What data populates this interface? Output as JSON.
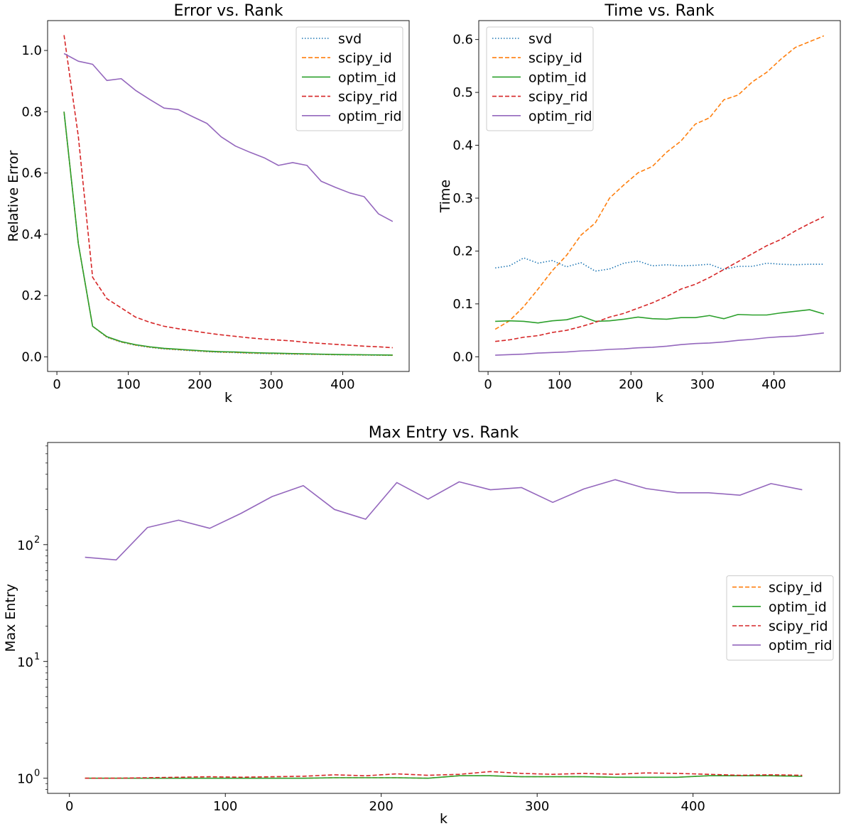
{
  "chart_data": [
    {
      "id": "error",
      "type": "line",
      "title": "Error vs. Rank",
      "xlabel": "k",
      "ylabel": "Relative Error",
      "xlim": [
        -13,
        493
      ],
      "ylim": [
        -0.0475,
        1.0975
      ],
      "xticks": [
        0,
        100,
        200,
        300,
        400
      ],
      "xtick_labels": [
        "0",
        "100",
        "200",
        "300",
        "400"
      ],
      "yticks": [
        0.0,
        0.2,
        0.4,
        0.6,
        0.8,
        1.0
      ],
      "ytick_labels": [
        "0.0",
        "0.2",
        "0.4",
        "0.6",
        "0.8",
        "1.0"
      ],
      "yscale": "linear",
      "grid": false,
      "legend": "top-right",
      "x": [
        10,
        30,
        50,
        70,
        90,
        110,
        130,
        150,
        170,
        190,
        210,
        230,
        250,
        270,
        290,
        310,
        330,
        350,
        370,
        390,
        410,
        430,
        450,
        470
      ],
      "series": [
        {
          "name": "svd",
          "color": "#1f77b4",
          "style": "dotted",
          "values": [
            0.8,
            0.37,
            0.1,
            0.064,
            0.048,
            0.038,
            0.031,
            0.026,
            0.023,
            0.02,
            0.017,
            0.015,
            0.014,
            0.012,
            0.011,
            0.01,
            0.009,
            0.0085,
            0.008,
            0.007,
            0.0065,
            0.006,
            0.0055,
            0.005
          ]
        },
        {
          "name": "scipy_id",
          "color": "#ff7f0e",
          "style": "dashed",
          "values": [
            0.8,
            0.37,
            0.1,
            0.065,
            0.049,
            0.039,
            0.032,
            0.027,
            0.024,
            0.021,
            0.018,
            0.016,
            0.015,
            0.013,
            0.012,
            0.011,
            0.01,
            0.009,
            0.0085,
            0.0075,
            0.007,
            0.0065,
            0.006,
            0.0055
          ]
        },
        {
          "name": "optim_id",
          "color": "#2ca02c",
          "style": "solid",
          "values": [
            0.8,
            0.37,
            0.1,
            0.066,
            0.05,
            0.04,
            0.033,
            0.028,
            0.025,
            0.022,
            0.019,
            0.017,
            0.016,
            0.014,
            0.013,
            0.012,
            0.011,
            0.01,
            0.009,
            0.008,
            0.0075,
            0.007,
            0.0065,
            0.006
          ]
        },
        {
          "name": "scipy_rid",
          "color": "#d62728",
          "style": "dashed",
          "values": [
            1.05,
            0.72,
            0.26,
            0.19,
            0.16,
            0.13,
            0.113,
            0.1,
            0.092,
            0.085,
            0.078,
            0.072,
            0.067,
            0.062,
            0.058,
            0.055,
            0.052,
            0.047,
            0.044,
            0.041,
            0.038,
            0.035,
            0.033,
            0.03
          ]
        },
        {
          "name": "optim_rid",
          "color": "#9467bd",
          "style": "solid",
          "values": [
            0.99,
            0.965,
            0.955,
            0.902,
            0.908,
            0.87,
            0.84,
            0.812,
            0.807,
            0.784,
            0.762,
            0.718,
            0.688,
            0.668,
            0.65,
            0.625,
            0.634,
            0.625,
            0.573,
            0.553,
            0.535,
            0.523,
            0.467,
            0.442
          ]
        }
      ]
    },
    {
      "id": "time",
      "type": "line",
      "title": "Time vs. Rank",
      "xlabel": "k",
      "ylabel": "Time",
      "xlim": [
        -13,
        493
      ],
      "ylim": [
        -0.0278,
        0.6358
      ],
      "xticks": [
        0,
        100,
        200,
        300,
        400
      ],
      "xtick_labels": [
        "0",
        "100",
        "200",
        "300",
        "400"
      ],
      "yticks": [
        0.0,
        0.1,
        0.2,
        0.3,
        0.4,
        0.5,
        0.6
      ],
      "ytick_labels": [
        "0.0",
        "0.1",
        "0.2",
        "0.3",
        "0.4",
        "0.5",
        "0.6"
      ],
      "yscale": "linear",
      "grid": false,
      "legend": "top-left",
      "x": [
        10,
        30,
        50,
        70,
        90,
        110,
        130,
        150,
        170,
        190,
        210,
        230,
        250,
        270,
        290,
        310,
        330,
        350,
        370,
        390,
        410,
        430,
        450,
        470
      ],
      "series": [
        {
          "name": "svd",
          "color": "#1f77b4",
          "style": "dotted",
          "values": [
            0.168,
            0.172,
            0.187,
            0.177,
            0.182,
            0.17,
            0.178,
            0.162,
            0.166,
            0.177,
            0.181,
            0.172,
            0.174,
            0.172,
            0.173,
            0.175,
            0.165,
            0.171,
            0.171,
            0.177,
            0.175,
            0.174,
            0.175,
            0.175
          ]
        },
        {
          "name": "scipy_id",
          "color": "#ff7f0e",
          "style": "dashed",
          "values": [
            0.052,
            0.068,
            0.095,
            0.128,
            0.163,
            0.192,
            0.23,
            0.253,
            0.3,
            0.325,
            0.348,
            0.36,
            0.387,
            0.408,
            0.44,
            0.452,
            0.486,
            0.495,
            0.52,
            0.538,
            0.563,
            0.585,
            0.596,
            0.607
          ]
        },
        {
          "name": "optim_id",
          "color": "#2ca02c",
          "style": "solid",
          "values": [
            0.067,
            0.068,
            0.067,
            0.064,
            0.068,
            0.07,
            0.077,
            0.067,
            0.068,
            0.071,
            0.075,
            0.072,
            0.071,
            0.074,
            0.074,
            0.078,
            0.072,
            0.08,
            0.079,
            0.079,
            0.083,
            0.086,
            0.089,
            0.081
          ]
        },
        {
          "name": "scipy_rid",
          "color": "#d62728",
          "style": "dashed",
          "values": [
            0.029,
            0.032,
            0.037,
            0.04,
            0.046,
            0.05,
            0.057,
            0.065,
            0.075,
            0.082,
            0.092,
            0.102,
            0.114,
            0.128,
            0.137,
            0.15,
            0.165,
            0.18,
            0.195,
            0.21,
            0.222,
            0.238,
            0.252,
            0.265
          ]
        },
        {
          "name": "optim_rid",
          "color": "#9467bd",
          "style": "solid",
          "values": [
            0.003,
            0.004,
            0.005,
            0.007,
            0.008,
            0.009,
            0.011,
            0.012,
            0.014,
            0.015,
            0.017,
            0.018,
            0.02,
            0.023,
            0.025,
            0.026,
            0.028,
            0.031,
            0.033,
            0.036,
            0.038,
            0.039,
            0.042,
            0.045
          ]
        }
      ]
    },
    {
      "id": "maxentry",
      "type": "line",
      "title": "Max Entry vs. Rank",
      "xlabel": "k",
      "ylabel": "Max Entry",
      "xlim": [
        -14,
        494
      ],
      "ylim_log10": [
        -0.1295,
        2.8745
      ],
      "xticks": [
        0,
        100,
        200,
        300,
        400
      ],
      "xtick_labels": [
        "0",
        "100",
        "200",
        "300",
        "400"
      ],
      "ytick_values": [
        1,
        10,
        100
      ],
      "ytick_labels": [
        "10",
        "10",
        "10"
      ],
      "ytick_exponents": [
        "0",
        "1",
        "2"
      ],
      "yscale": "log",
      "grid": false,
      "legend": "center-right",
      "x": [
        10,
        30,
        50,
        70,
        90,
        110,
        130,
        150,
        170,
        190,
        210,
        230,
        250,
        270,
        290,
        310,
        330,
        350,
        370,
        390,
        410,
        430,
        450,
        470
      ],
      "series": [
        {
          "name": "scipy_id",
          "color": "#ff7f0e",
          "style": "dashed",
          "values": [
            1.0,
            1.0,
            1.0,
            1.0,
            1.0,
            1.0,
            1.0,
            1.0,
            1.01,
            1.01,
            1.01,
            1.0,
            1.05,
            1.05,
            1.03,
            1.03,
            1.03,
            1.02,
            1.02,
            1.02,
            1.05,
            1.05,
            1.05,
            1.04
          ]
        },
        {
          "name": "optim_id",
          "color": "#2ca02c",
          "style": "solid",
          "values": [
            1.0,
            1.0,
            1.0,
            1.0,
            1.0,
            1.0,
            1.0,
            1.0,
            1.01,
            1.01,
            1.01,
            1.0,
            1.05,
            1.05,
            1.03,
            1.03,
            1.03,
            1.02,
            1.02,
            1.02,
            1.05,
            1.05,
            1.05,
            1.04
          ]
        },
        {
          "name": "scipy_rid",
          "color": "#d62728",
          "style": "dashed",
          "values": [
            1.0,
            1.0,
            1.01,
            1.02,
            1.03,
            1.02,
            1.03,
            1.04,
            1.07,
            1.05,
            1.09,
            1.06,
            1.08,
            1.14,
            1.1,
            1.08,
            1.1,
            1.08,
            1.11,
            1.1,
            1.08,
            1.06,
            1.07,
            1.06
          ]
        },
        {
          "name": "optim_rid",
          "color": "#9467bd",
          "style": "solid",
          "values": [
            78,
            74,
            140,
            162,
            138,
            185,
            258,
            320,
            200,
            165,
            340,
            245,
            345,
            295,
            308,
            230,
            300,
            360,
            302,
            278,
            278,
            265,
            333,
            295
          ]
        }
      ]
    }
  ]
}
